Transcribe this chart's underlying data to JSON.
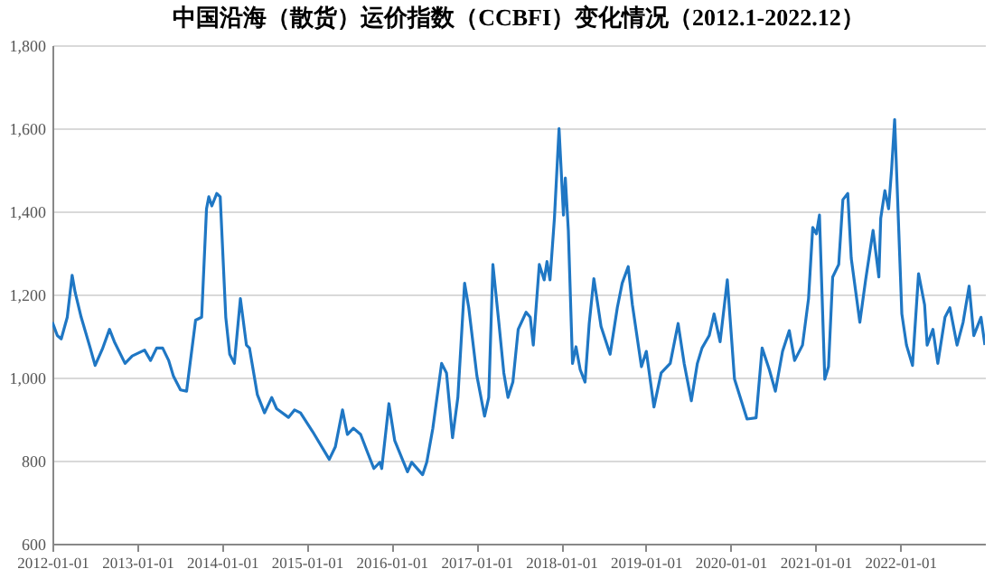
{
  "chart_data": {
    "type": "line",
    "title": "中国沿海（散货）运价指数（CCBFI）变化情况（2012.1-2022.12）",
    "xlim": [
      "2012-01-01",
      "2023-01-01"
    ],
    "xticks": [
      "2012-01-01",
      "2013-01-01",
      "2014-01-01",
      "2015-01-01",
      "2016-01-01",
      "2017-01-01",
      "2018-01-01",
      "2019-01-01",
      "2020-01-01",
      "2021-01-01",
      "2022-01-01"
    ],
    "ylim": [
      600,
      1800
    ],
    "yticks": [
      {
        "value": 600,
        "label": "600"
      },
      {
        "value": 800,
        "label": "800"
      },
      {
        "value": 1000,
        "label": "1,000"
      },
      {
        "value": 1200,
        "label": "1,200"
      },
      {
        "value": 1400,
        "label": "1,400"
      },
      {
        "value": 1600,
        "label": "1,600"
      },
      {
        "value": 1800,
        "label": "1,800"
      }
    ],
    "grid": "y",
    "marker": "none",
    "line_style": "solid",
    "series": [
      {
        "color": "#1f77c4",
        "x": [
          "2012-01-01",
          "2012-01-22",
          "2012-02-08",
          "2012-03-05",
          "2012-03-26",
          "2012-04-08",
          "2012-05-04",
          "2012-06-12",
          "2012-07-03",
          "2012-08-03",
          "2012-09-03",
          "2012-09-24",
          "2012-11-09",
          "2012-12-10",
          "2013-02-01",
          "2013-02-27",
          "2013-03-25",
          "2013-04-20",
          "2013-05-16",
          "2013-06-05",
          "2013-07-06",
          "2013-08-01",
          "2013-09-09",
          "2013-10-05",
          "2013-10-26",
          "2013-11-05",
          "2013-11-18",
          "2013-12-09",
          "2013-12-24",
          "2014-01-17",
          "2014-02-03",
          "2014-02-23",
          "2014-03-21",
          "2014-04-16",
          "2014-04-29",
          "2014-06-02",
          "2014-07-03",
          "2014-08-03",
          "2014-08-24",
          "2014-10-14",
          "2014-11-09",
          "2014-12-05",
          "2015-01-26",
          "2015-04-08",
          "2015-05-04",
          "2015-06-04",
          "2015-06-25",
          "2015-07-21",
          "2015-08-21",
          "2015-09-21",
          "2015-10-17",
          "2015-11-12",
          "2015-11-20",
          "2015-12-21",
          "2016-01-15",
          "2016-03-10",
          "2016-03-28",
          "2016-05-14",
          "2016-06-01",
          "2016-06-27",
          "2016-08-04",
          "2016-08-25",
          "2016-09-20",
          "2016-10-13",
          "2016-11-11",
          "2016-11-29",
          "2017-01-03",
          "2017-02-05",
          "2017-02-23",
          "2017-03-13",
          "2017-04-08",
          "2017-04-29",
          "2017-05-17",
          "2017-06-07",
          "2017-06-30",
          "2017-08-03",
          "2017-08-21",
          "2017-09-03",
          "2017-09-29",
          "2017-10-20",
          "2017-11-01",
          "2017-11-14",
          "2017-12-03",
          "2017-12-23",
          "2018-01-11",
          "2018-01-19",
          "2018-02-01",
          "2018-02-19",
          "2018-03-06",
          "2018-03-24",
          "2018-04-14",
          "2018-05-02",
          "2018-05-22",
          "2018-06-22",
          "2018-07-31",
          "2018-08-31",
          "2018-09-21",
          "2018-10-17",
          "2018-11-04",
          "2018-12-13",
          "2019-01-03",
          "2019-02-05",
          "2019-03-08",
          "2019-04-16",
          "2019-05-20",
          "2019-06-15",
          "2019-07-16",
          "2019-08-11",
          "2019-08-31",
          "2019-10-01",
          "2019-10-22",
          "2019-11-17",
          "2019-12-18",
          "2020-01-18",
          "2020-03-12",
          "2020-04-20",
          "2020-05-16",
          "2020-06-16",
          "2020-07-12",
          "2020-08-12",
          "2020-09-10",
          "2020-10-03",
          "2020-11-06",
          "2020-12-02",
          "2020-12-20",
          "2021-01-05",
          "2021-01-18",
          "2021-02-10",
          "2021-02-26",
          "2021-03-16",
          "2021-04-11",
          "2021-04-29",
          "2021-05-20",
          "2021-06-04",
          "2021-07-11",
          "2021-08-05",
          "2021-09-06",
          "2021-10-01",
          "2021-10-09",
          "2021-10-27",
          "2021-11-12",
          "2021-11-25",
          "2021-12-08",
          "2021-12-18",
          "2022-01-08",
          "2022-01-28",
          "2022-02-23",
          "2022-03-21",
          "2022-04-16",
          "2022-04-27",
          "2022-05-22",
          "2022-06-12",
          "2022-07-13",
          "2022-08-03",
          "2022-09-03",
          "2022-09-29",
          "2022-10-25",
          "2022-11-14",
          "2022-12-15",
          "2023-01-01"
        ],
        "values": [
          1133,
          1101,
          1093,
          1145,
          1246,
          1205,
          1145,
          1071,
          1029,
          1068,
          1116,
          1086,
          1034,
          1052,
          1066,
          1041,
          1071,
          1071,
          1041,
          1004,
          970,
          967,
          1138,
          1145,
          1406,
          1435,
          1413,
          1443,
          1435,
          1145,
          1056,
          1034,
          1190,
          1078,
          1071,
          959,
          915,
          952,
          925,
          904,
          922,
          915,
          870,
          803,
          833,
          922,
          863,
          878,
          863,
          818,
          781,
          796,
          781,
          937,
          848,
          773,
          796,
          766,
          796,
          877,
          1034,
          1011,
          855,
          952,
          1227,
          1168,
          1004,
          907,
          952,
          1272,
          1130,
          1011,
          952,
          989,
          1116,
          1157,
          1145,
          1078,
          1272,
          1235,
          1279,
          1235,
          1383,
          1599,
          1391,
          1480,
          1354,
          1034,
          1074,
          1019,
          989,
          1130,
          1238,
          1123,
          1056,
          1168,
          1227,
          1267,
          1175,
          1026,
          1063,
          929,
          1011,
          1034,
          1130,
          1034,
          944,
          1034,
          1071,
          1101,
          1153,
          1086,
          1235,
          996,
          900,
          903,
          1071,
          1019,
          967,
          1063,
          1113,
          1041,
          1078,
          1190,
          1361,
          1346,
          1391,
          996,
          1026,
          1242,
          1272,
          1428,
          1443,
          1287,
          1133,
          1235,
          1354,
          1242,
          1383,
          1450,
          1406,
          1502,
          1621,
          1472,
          1153,
          1078,
          1029,
          1250,
          1175,
          1078,
          1116,
          1034,
          1145,
          1168,
          1078,
          1133,
          1220,
          1101,
          1145,
          1078
        ]
      }
    ]
  }
}
